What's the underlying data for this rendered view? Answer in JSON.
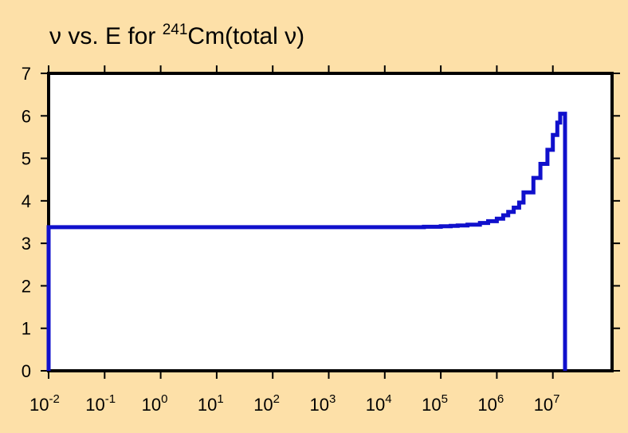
{
  "page": {
    "background": "#fde0a8"
  },
  "chart_data": {
    "type": "line",
    "title": {
      "prefix": "ν vs. E for ",
      "superscript": "241",
      "suffix": "Cm(total ν)"
    },
    "xlabel": "",
    "ylabel": "",
    "x_scale": "log",
    "xlim": [
      0.01,
      20000000
    ],
    "ylim": [
      0,
      7
    ],
    "yticks": [
      0,
      1,
      2,
      3,
      4,
      5,
      6,
      7
    ],
    "y_tick_labels": [
      "0",
      "1",
      "2",
      "3",
      "4",
      "5",
      "6",
      "7"
    ],
    "x_tick_labels": [
      {
        "base": "10",
        "exp": "-2"
      },
      {
        "base": "10",
        "exp": "-1"
      },
      {
        "base": "10",
        "exp": "0"
      },
      {
        "base": "10",
        "exp": "1"
      },
      {
        "base": "10",
        "exp": "2"
      },
      {
        "base": "10",
        "exp": "3"
      },
      {
        "base": "10",
        "exp": "4"
      },
      {
        "base": "10",
        "exp": "5"
      },
      {
        "base": "10",
        "exp": "6"
      },
      {
        "base": "10",
        "exp": "7"
      }
    ],
    "grid": false,
    "line_color": "#1010cc",
    "plot_background": "#ffffff",
    "series": [
      {
        "step": "post",
        "x": [
          0.01,
          0.01,
          50000,
          100000,
          150000,
          200000,
          300000,
          500000,
          700000,
          1000000,
          1300000,
          1600000,
          2000000,
          2500000,
          3000000,
          4500000,
          6000000,
          8000000,
          10000000,
          12000000,
          13500000,
          15000000,
          16500000,
          16500000
        ],
        "y": [
          0,
          3.38,
          3.39,
          3.4,
          3.41,
          3.42,
          3.44,
          3.48,
          3.52,
          3.58,
          3.66,
          3.74,
          3.84,
          3.96,
          4.2,
          4.54,
          4.87,
          5.2,
          5.55,
          5.84,
          6.05,
          6.05,
          6.05,
          0
        ]
      }
    ]
  }
}
